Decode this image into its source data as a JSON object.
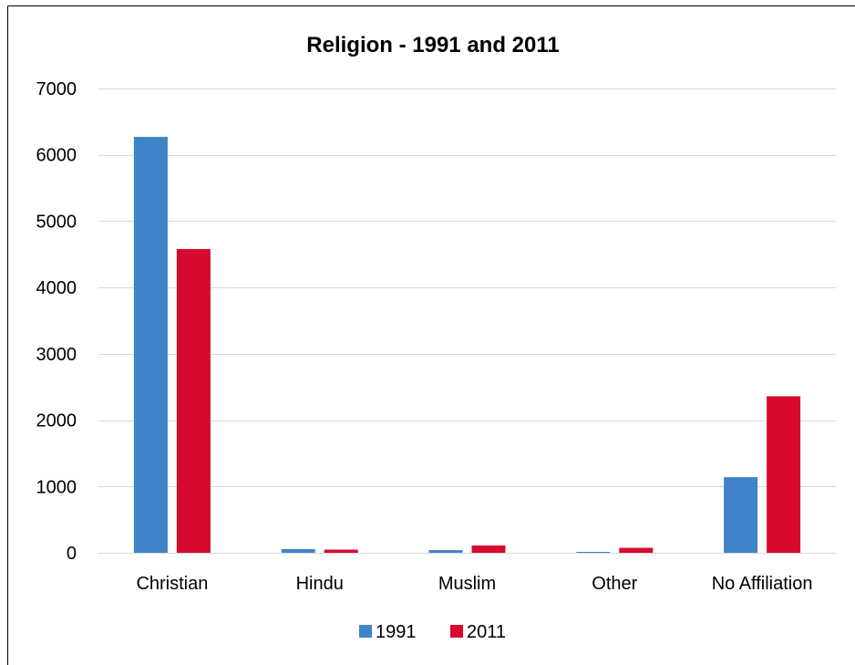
{
  "chart_data": {
    "type": "bar",
    "title": "Religion - 1991 and 2011",
    "xlabel": "",
    "ylabel": "",
    "categories": [
      "Christian",
      "Hindu",
      "Muslim",
      "Other",
      "No Affiliation"
    ],
    "series": [
      {
        "name": "1991",
        "values": [
          6270,
          55,
          40,
          10,
          1140
        ],
        "color": "#3F83C9"
      },
      {
        "name": "2011",
        "values": [
          4580,
          48,
          110,
          75,
          2360
        ],
        "color": "#D8092F"
      }
    ],
    "ylim": [
      0,
      7000
    ],
    "yticks": [
      "0",
      "1000",
      "2000",
      "3000",
      "4000",
      "5000",
      "6000",
      "7000"
    ],
    "grid": true,
    "legend_position": "bottom"
  },
  "colors": {
    "gridline": "#D9D9D9",
    "axis": "#D9D9D9",
    "border": "#000000",
    "text": "#000000"
  }
}
